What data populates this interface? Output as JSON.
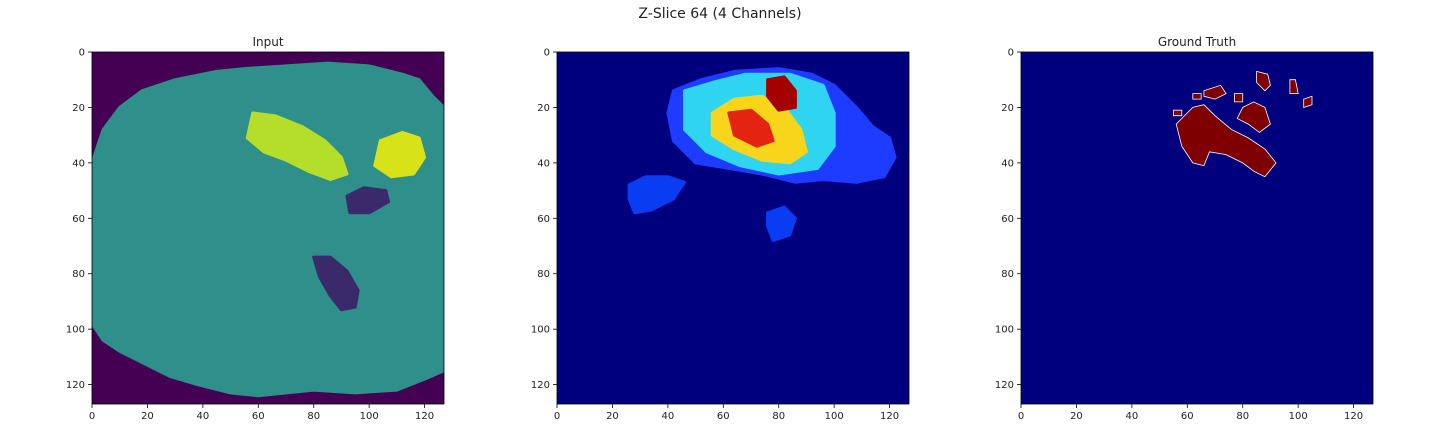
{
  "figure": {
    "suptitle": "Z-Slice 64 (4 Channels)"
  },
  "chart_data": [
    {
      "type": "heatmap",
      "title": "Input",
      "colormap": "viridis",
      "xlim": [
        0,
        127
      ],
      "ylim": [
        127,
        0
      ],
      "xticks": [
        0,
        20,
        40,
        60,
        80,
        100,
        120
      ],
      "yticks": [
        0,
        20,
        40,
        60,
        80,
        100,
        120
      ],
      "background_color": "#440154",
      "tissue_color": "#2a8a8a",
      "regions": [
        {
          "name": "brain",
          "color": "#2f8f8a",
          "points": [
            [
              0,
              40
            ],
            [
              4,
              28
            ],
            [
              10,
              20
            ],
            [
              18,
              14
            ],
            [
              30,
              10
            ],
            [
              45,
              7
            ],
            [
              55,
              6
            ],
            [
              70,
              5
            ],
            [
              85,
              4
            ],
            [
              100,
              5
            ],
            [
              112,
              8
            ],
            [
              118,
              10
            ],
            [
              123,
              16
            ],
            [
              127,
              20
            ],
            [
              127,
              115
            ],
            [
              120,
              118
            ],
            [
              110,
              122
            ],
            [
              95,
              123
            ],
            [
              80,
              122
            ],
            [
              60,
              124
            ],
            [
              50,
              123
            ],
            [
              38,
              120
            ],
            [
              28,
              117
            ],
            [
              18,
              112
            ],
            [
              10,
              108
            ],
            [
              4,
              104
            ],
            [
              0,
              98
            ]
          ]
        },
        {
          "name": "hyperintensity-1",
          "color": "#b5de2b",
          "points": [
            [
              58,
              22
            ],
            [
              66,
              23
            ],
            [
              76,
              27
            ],
            [
              84,
              32
            ],
            [
              90,
              38
            ],
            [
              92,
              44
            ],
            [
              86,
              46
            ],
            [
              78,
              43
            ],
            [
              70,
              39
            ],
            [
              62,
              36
            ],
            [
              56,
              31
            ]
          ]
        },
        {
          "name": "hyperintensity-2",
          "color": "#d8e219",
          "points": [
            [
              104,
              32
            ],
            [
              112,
              29
            ],
            [
              118,
              31
            ],
            [
              120,
              38
            ],
            [
              116,
              44
            ],
            [
              108,
              45
            ],
            [
              102,
              41
            ]
          ]
        },
        {
          "name": "ventricle-1",
          "color": "#3b2a6b",
          "points": [
            [
              92,
              52
            ],
            [
              98,
              49
            ],
            [
              106,
              50
            ],
            [
              107,
              54
            ],
            [
              100,
              58
            ],
            [
              93,
              58
            ]
          ]
        },
        {
          "name": "ventricle-2",
          "color": "#3b2a6b",
          "points": [
            [
              80,
              74
            ],
            [
              86,
              74
            ],
            [
              92,
              79
            ],
            [
              96,
              86
            ],
            [
              95,
              92
            ],
            [
              90,
              93
            ],
            [
              86,
              88
            ],
            [
              82,
              81
            ]
          ]
        }
      ]
    },
    {
      "type": "heatmap",
      "title": "",
      "colormap": "jet",
      "xlim": [
        0,
        127
      ],
      "ylim": [
        127,
        0
      ],
      "xticks": [
        0,
        20,
        40,
        60,
        80,
        100,
        120
      ],
      "yticks": [
        0,
        20,
        40,
        60,
        80,
        100,
        120
      ],
      "background_color": "#00007f",
      "regions": [
        {
          "name": "outer-glow",
          "color": "#1e3cff",
          "points": [
            [
              42,
              14
            ],
            [
              52,
              10
            ],
            [
              64,
              7
            ],
            [
              80,
              6
            ],
            [
              92,
              8
            ],
            [
              100,
              12
            ],
            [
              108,
              20
            ],
            [
              114,
              27
            ],
            [
              120,
              31
            ],
            [
              122,
              38
            ],
            [
              118,
              45
            ],
            [
              108,
              47
            ],
            [
              96,
              46
            ],
            [
              86,
              47
            ],
            [
              74,
              44
            ],
            [
              62,
              42
            ],
            [
              50,
              40
            ],
            [
              42,
              32
            ],
            [
              40,
              22
            ]
          ]
        },
        {
          "name": "cyan-band",
          "color": "#2fd5f0",
          "points": [
            [
              46,
              14
            ],
            [
              56,
              11
            ],
            [
              68,
              8
            ],
            [
              84,
              8
            ],
            [
              96,
              12
            ],
            [
              100,
              22
            ],
            [
              100,
              34
            ],
            [
              94,
              42
            ],
            [
              80,
              44
            ],
            [
              66,
              41
            ],
            [
              54,
              36
            ],
            [
              46,
              28
            ]
          ]
        },
        {
          "name": "yellow-core",
          "color": "#f7d51a",
          "points": [
            [
              56,
              22
            ],
            [
              64,
              17
            ],
            [
              74,
              16
            ],
            [
              82,
              20
            ],
            [
              88,
              28
            ],
            [
              90,
              36
            ],
            [
              84,
              40
            ],
            [
              74,
              39
            ],
            [
              64,
              35
            ],
            [
              56,
              30
            ]
          ]
        },
        {
          "name": "red-core-1",
          "color": "#e42411",
          "points": [
            [
              62,
              22
            ],
            [
              70,
              21
            ],
            [
              76,
              26
            ],
            [
              78,
              32
            ],
            [
              72,
              34
            ],
            [
              64,
              30
            ]
          ]
        },
        {
          "name": "red-core-2",
          "color": "#a50000",
          "points": [
            [
              76,
              10
            ],
            [
              82,
              9
            ],
            [
              86,
              14
            ],
            [
              86,
              20
            ],
            [
              80,
              21
            ],
            [
              76,
              16
            ]
          ]
        },
        {
          "name": "low-blob-1",
          "color": "#0a3df2",
          "points": [
            [
              26,
              48
            ],
            [
              32,
              45
            ],
            [
              40,
              45
            ],
            [
              46,
              47
            ],
            [
              42,
              53
            ],
            [
              34,
              57
            ],
            [
              28,
              58
            ],
            [
              26,
              53
            ]
          ]
        },
        {
          "name": "low-blob-2",
          "color": "#0a3df2",
          "points": [
            [
              76,
              58
            ],
            [
              82,
              56
            ],
            [
              86,
              60
            ],
            [
              84,
              66
            ],
            [
              78,
              68
            ],
            [
              76,
              63
            ]
          ]
        }
      ]
    },
    {
      "type": "heatmap",
      "title": "Ground Truth",
      "colormap": "jet",
      "xlim": [
        0,
        127
      ],
      "ylim": [
        127,
        0
      ],
      "xticks": [
        0,
        20,
        40,
        60,
        80,
        100,
        120
      ],
      "yticks": [
        0,
        20,
        40,
        60,
        80,
        100,
        120
      ],
      "background_color": "#00007f",
      "mask_color": "#7f0000",
      "edge_color": "#ffffff",
      "regions": [
        {
          "name": "mask-main",
          "color": "#7f0000",
          "points": [
            [
              56,
              26
            ],
            [
              62,
              20
            ],
            [
              66,
              19
            ],
            [
              70,
              23
            ],
            [
              76,
              28
            ],
            [
              82,
              31
            ],
            [
              88,
              35
            ],
            [
              92,
              40
            ],
            [
              88,
              45
            ],
            [
              84,
              43
            ],
            [
              80,
              40
            ],
            [
              74,
              37
            ],
            [
              68,
              36
            ],
            [
              66,
              41
            ],
            [
              62,
              40
            ],
            [
              58,
              34
            ]
          ]
        },
        {
          "name": "mask-upper-right",
          "color": "#7f0000",
          "points": [
            [
              80,
              20
            ],
            [
              84,
              18
            ],
            [
              88,
              20
            ],
            [
              90,
              26
            ],
            [
              86,
              29
            ],
            [
              82,
              26
            ],
            [
              78,
              24
            ]
          ]
        },
        {
          "name": "mask-top-1",
          "color": "#7f0000",
          "points": [
            [
              66,
              14
            ],
            [
              72,
              12
            ],
            [
              74,
              15
            ],
            [
              70,
              17
            ],
            [
              66,
              16
            ]
          ]
        },
        {
          "name": "mask-top-2",
          "color": "#7f0000",
          "points": [
            [
              85,
              7
            ],
            [
              89,
              8
            ],
            [
              90,
              12
            ],
            [
              88,
              14
            ],
            [
              85,
              11
            ]
          ]
        },
        {
          "name": "mask-top-3",
          "color": "#7f0000",
          "points": [
            [
              97,
              10
            ],
            [
              99,
              10
            ],
            [
              100,
              15
            ],
            [
              97,
              15
            ]
          ]
        },
        {
          "name": "mask-right",
          "color": "#7f0000",
          "points": [
            [
              102,
              17
            ],
            [
              105,
              16
            ],
            [
              105,
              19
            ],
            [
              102,
              20
            ]
          ]
        },
        {
          "name": "mask-left",
          "color": "#7f0000",
          "points": [
            [
              55,
              21
            ],
            [
              58,
              21
            ],
            [
              58,
              23
            ],
            [
              55,
              23
            ]
          ]
        },
        {
          "name": "mask-small-1",
          "color": "#7f0000",
          "points": [
            [
              62,
              15
            ],
            [
              65,
              15
            ],
            [
              65,
              17
            ],
            [
              62,
              17
            ]
          ]
        },
        {
          "name": "mask-small-2",
          "color": "#7f0000",
          "points": [
            [
              77,
              15
            ],
            [
              80,
              15
            ],
            [
              80,
              18
            ],
            [
              77,
              18
            ]
          ]
        }
      ]
    }
  ]
}
